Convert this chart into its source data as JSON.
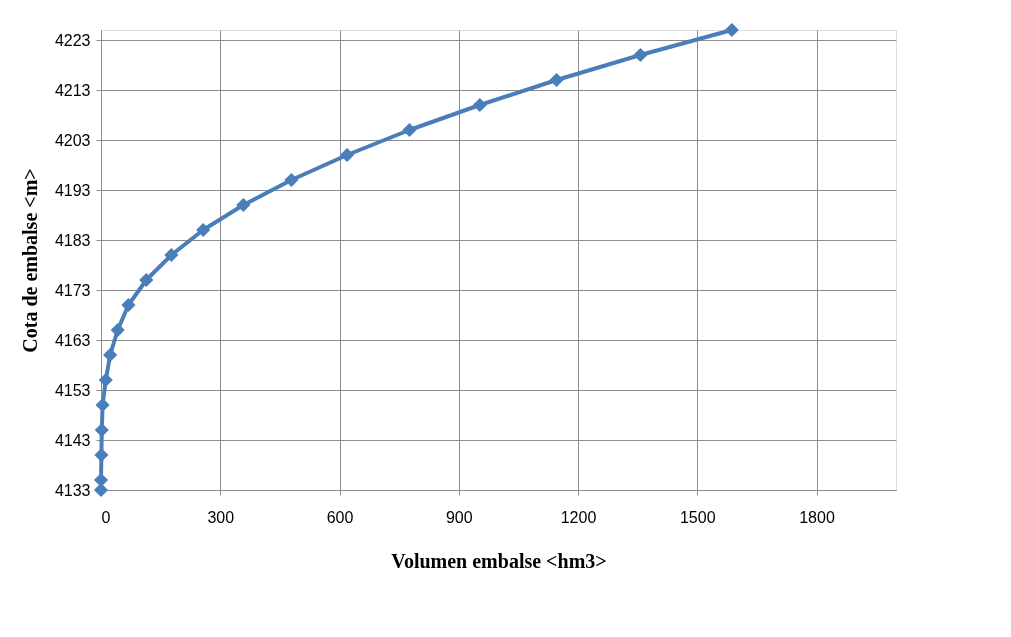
{
  "chart_data": {
    "type": "line",
    "xlabel": "Volumen embalse <hm3>",
    "ylabel": "Cota de embalse <m>",
    "x": [
      0,
      0,
      1,
      2,
      4,
      12,
      23,
      42,
      69,
      114,
      177,
      257,
      358,
      479,
      619,
      776,
      953,
      1146,
      1357,
      1587
    ],
    "series": [
      {
        "color": "#4a7ebb",
        "values": [
          4133,
          4135,
          4140,
          4145,
          4150,
          4155,
          4160,
          4165,
          4170,
          4175,
          4180,
          4185,
          4190,
          4195,
          4200,
          4205,
          4210,
          4215,
          4220,
          4225
        ]
      }
    ],
    "xlim": [
      0,
      2000
    ],
    "xticks": [
      0,
      300,
      600,
      900,
      1200,
      1500,
      1800
    ],
    "ylim": [
      4133,
      4225
    ],
    "yticks": [
      4133,
      4143,
      4153,
      4163,
      4173,
      4183,
      4193,
      4203,
      4213,
      4223
    ],
    "grid": true,
    "marker": "diamond",
    "line_style": "solid"
  }
}
